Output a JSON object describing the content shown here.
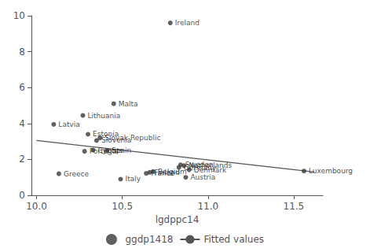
{
  "chart_data": {
    "type": "scatter",
    "xlabel": "lgdppc14",
    "xlim": [
      9.97,
      11.67
    ],
    "ylim": [
      0,
      10
    ],
    "xticks": [
      {
        "value": 10,
        "label": "10.0"
      },
      10.5,
      {
        "value": 11,
        "label": "11.0"
      },
      11.5
    ],
    "yticks": [
      0,
      2,
      4,
      6,
      8,
      10
    ],
    "grid": false,
    "legend": "bottom",
    "series": [
      {
        "name": "ggdp1418",
        "type": "scatter",
        "color": "#3a3a3a",
        "labels": [
          "Ireland",
          "Latvia",
          "Lithuania",
          "Malta",
          "Estonia",
          "Slovak Republic",
          "Slovenia",
          "Portugal",
          "Cyprus",
          "Spain",
          "Greece",
          "Italy",
          "France",
          "Finland",
          "Belgium",
          "Netherlands",
          "Germany",
          "Austria",
          "Luxembourg",
          "Denmark",
          "Sweden"
        ],
        "x": [
          10.78,
          10.1,
          10.27,
          10.45,
          10.3,
          10.37,
          10.35,
          10.28,
          10.33,
          10.41,
          10.13,
          10.49,
          10.64,
          10.66,
          10.68,
          10.86,
          10.83,
          10.87,
          11.56,
          10.89,
          10.84
        ],
        "values": [
          9.6,
          3.95,
          4.45,
          5.1,
          3.4,
          3.2,
          3.05,
          2.45,
          2.52,
          2.5,
          1.2,
          0.9,
          1.22,
          1.28,
          1.32,
          1.65,
          1.55,
          1.0,
          1.35,
          1.42,
          1.7
        ]
      },
      {
        "name": "Fitted values",
        "type": "line",
        "color": "#555555",
        "x": [
          10.0,
          11.62
        ],
        "values": [
          3.05,
          1.3
        ]
      }
    ]
  }
}
